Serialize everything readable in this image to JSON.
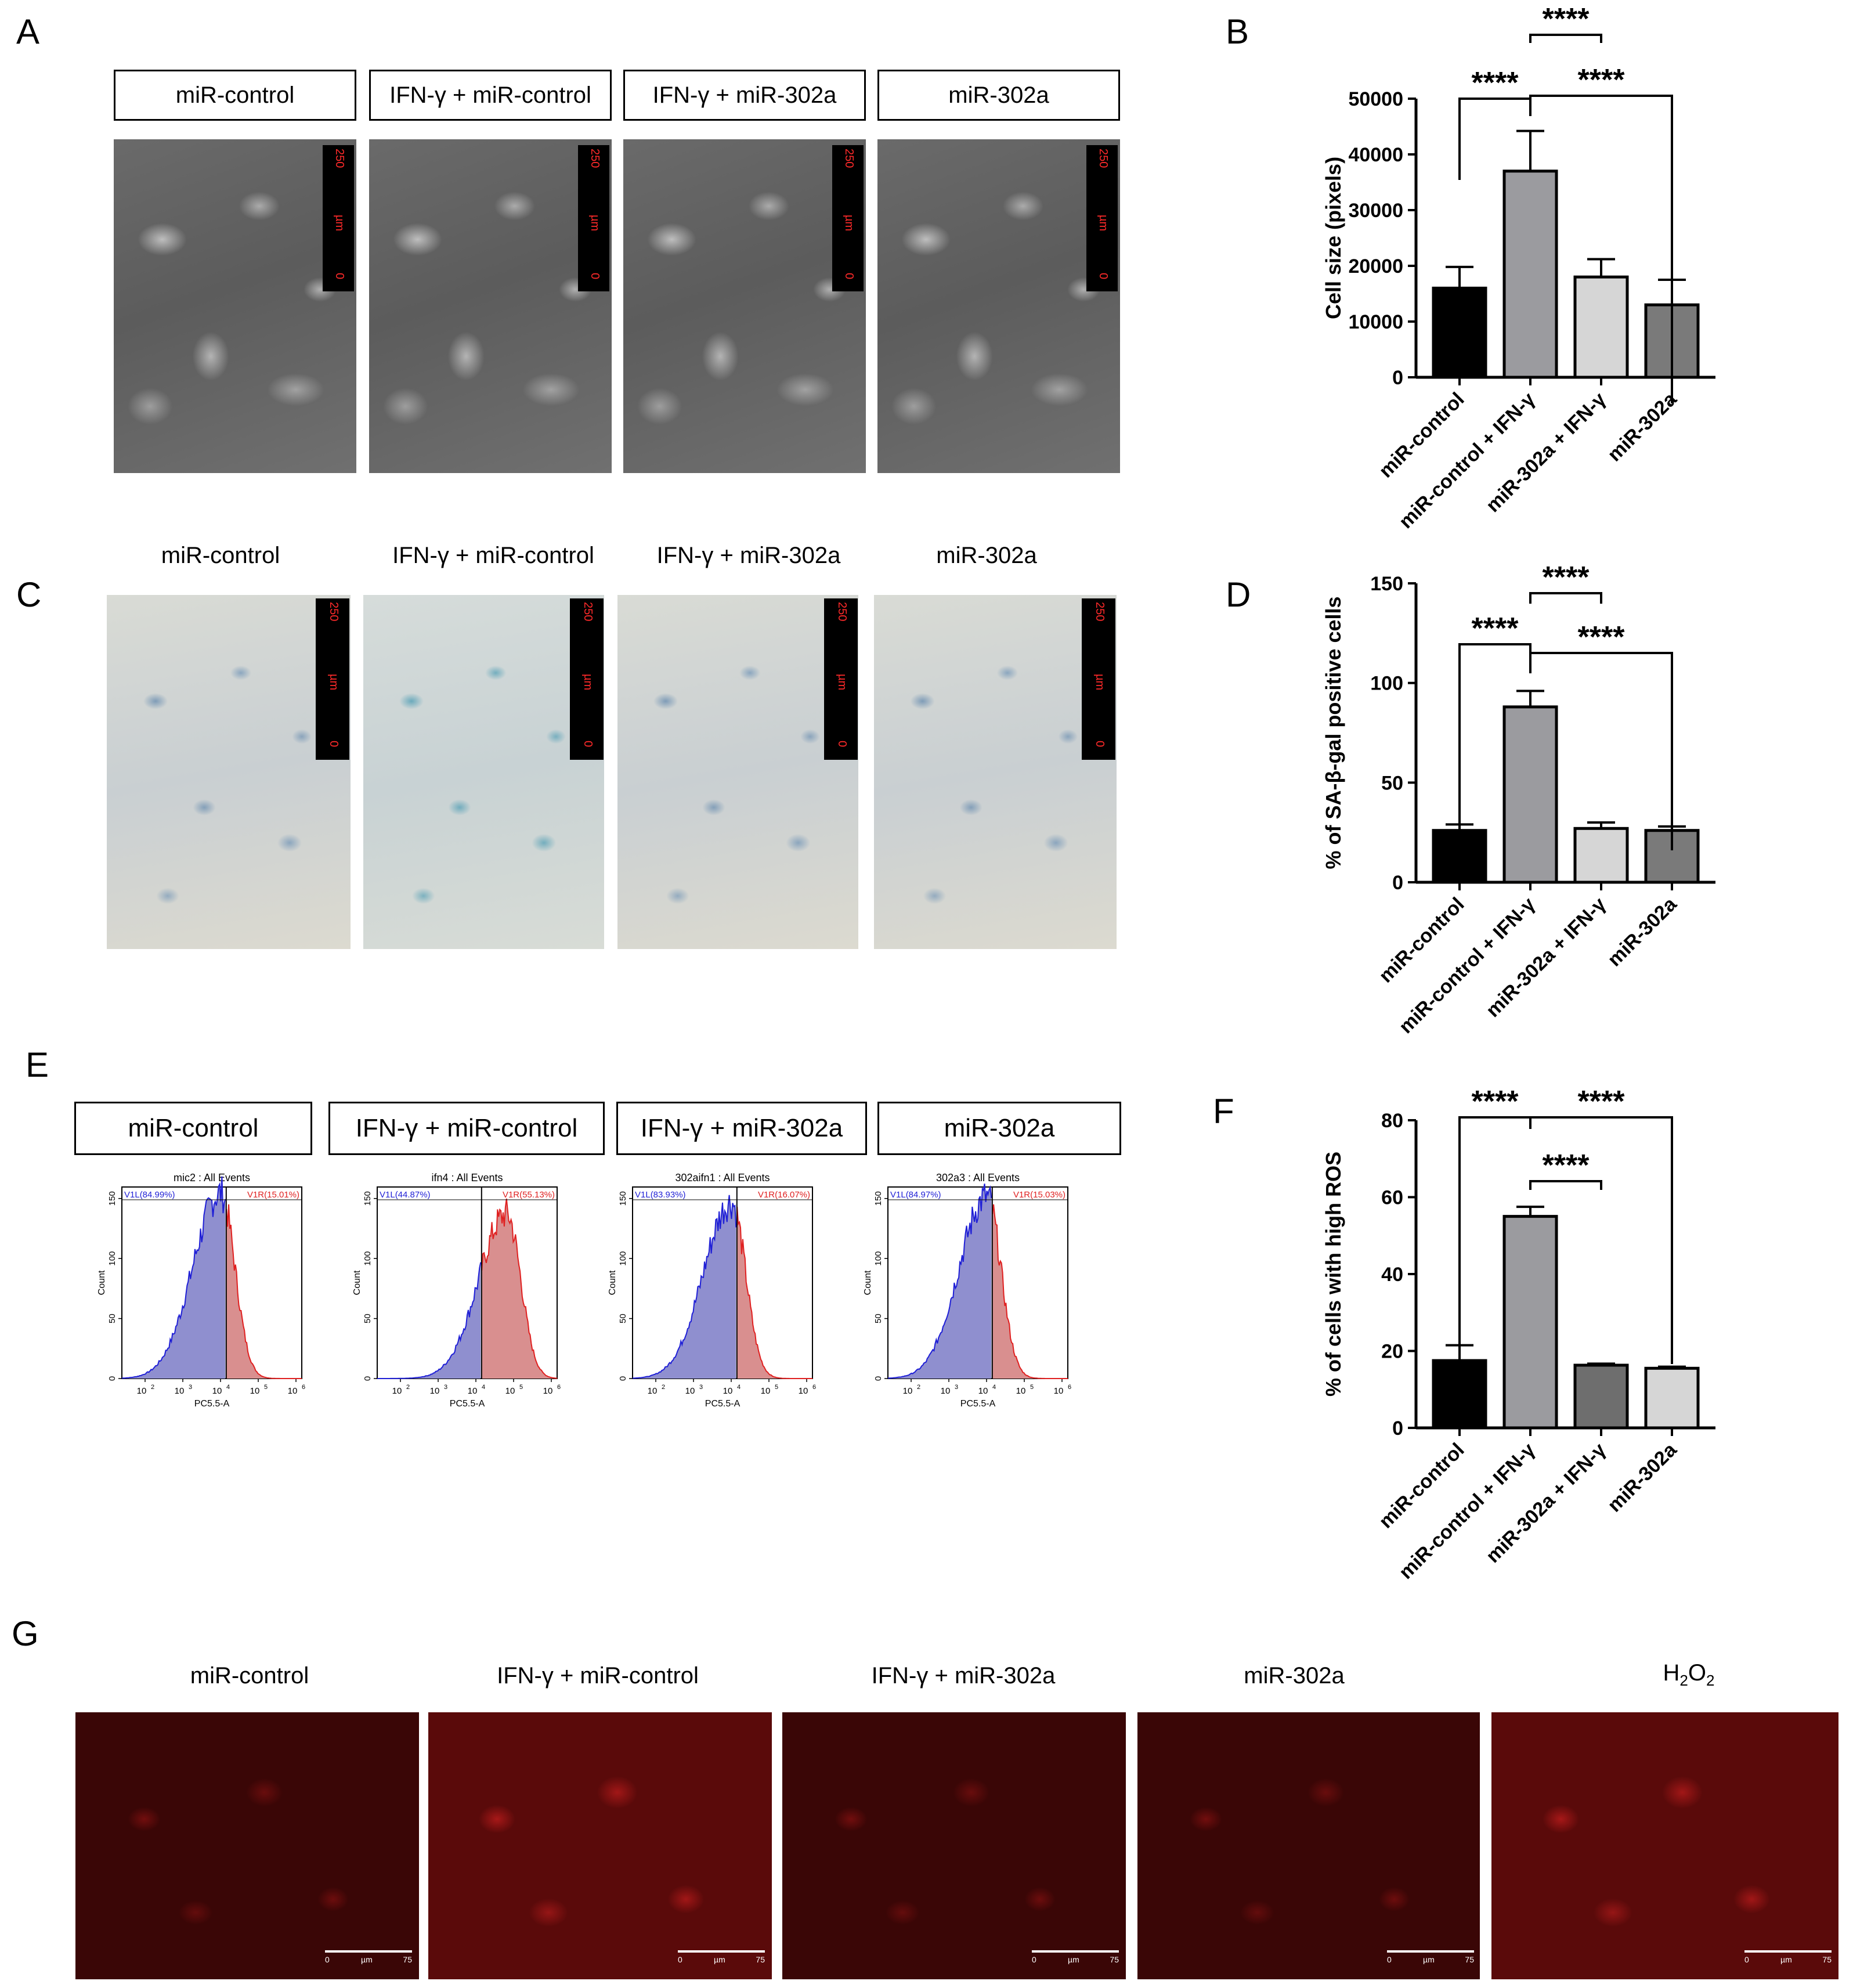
{
  "panel_letters": [
    "A",
    "B",
    "C",
    "D",
    "E",
    "F",
    "G"
  ],
  "panel_a": {
    "labels": [
      "miR-control",
      "IFN-γ + miR-control",
      "IFN-γ + miR-302a",
      "miR-302a"
    ],
    "scale_text": "250",
    "scale_unit": "µm",
    "scale_zero": "0"
  },
  "panel_c": {
    "labels": [
      "miR-control",
      "IFN-γ + miR-control",
      "IFN-γ  + miR-302a",
      "miR-302a"
    ],
    "scale_text": "250",
    "scale_unit": "µm",
    "scale_zero": "0"
  },
  "panel_e": {
    "labels": [
      "miR-control",
      "IFN-γ + miR-control",
      "IFN-γ + miR-302a",
      "miR-302a"
    ],
    "histograms": [
      {
        "title": "mic2 : All Events",
        "left_gate": "V1L(84.99%)",
        "right_gate": "V1R(15.01%)",
        "left_pct": 84.99,
        "right_pct": 15.01
      },
      {
        "title": "ifn4 : All Events",
        "left_gate": "V1L(44.87%)",
        "right_gate": "V1R(55.13%)",
        "left_pct": 44.87,
        "right_pct": 55.13
      },
      {
        "title": "302aifn1 : All Events",
        "left_gate": "V1L(83.93%)",
        "right_gate": "V1R(16.07%)",
        "left_pct": 83.93,
        "right_pct": 16.07
      },
      {
        "title": "302a3 : All Events",
        "left_gate": "V1L(84.97%)",
        "right_gate": "V1R(15.03%)",
        "left_pct": 84.97,
        "right_pct": 15.03
      }
    ],
    "ylabel": "Count",
    "xlabel": "PC5.5-A",
    "yticks": [
      "0",
      "50",
      "100",
      "150"
    ],
    "xticks": [
      {
        "base": "10",
        "exp": "2"
      },
      {
        "base": "10",
        "exp": "3"
      },
      {
        "base": "10",
        "exp": "4"
      },
      {
        "base": "10",
        "exp": "5"
      },
      {
        "base": "10",
        "exp": "6"
      }
    ],
    "colors": {
      "left": "#1f1fd6",
      "right": "#e02020",
      "left_fill": "#8f8fcf",
      "right_fill": "#d98f8f"
    }
  },
  "panel_g": {
    "labels": [
      "miR-control",
      "IFN-γ + miR-control",
      "IFN-γ + miR-302a",
      "miR-302a"
    ],
    "h2o2_base": "H",
    "h2o2_sub": "2",
    "h2o2_mid": "O",
    "h2o2_sub2": "2",
    "scale_zero": "0",
    "scale_unit": "µm",
    "scale_text": "75"
  },
  "chart_data": [
    {
      "panel": "B",
      "type": "bar",
      "categories": [
        "miR-control",
        "miR-control + IFN-γ",
        "miR-302a + IFN-γ",
        "miR-302a"
      ],
      "values": [
        16000,
        37000,
        18000,
        13000
      ],
      "errors": [
        3800,
        7200,
        3200,
        4500
      ],
      "colors": [
        "#000000",
        "#9b9b9f",
        "#d6d6d6",
        "#7a7a7a"
      ],
      "ylabel": "Cell size (pixels)",
      "ylim": [
        0,
        50000
      ],
      "yticks": [
        "0",
        "10000",
        "20000",
        "30000",
        "40000",
        "50000"
      ],
      "significance": [
        {
          "from": 0,
          "to": 1,
          "label": "****"
        },
        {
          "from": 1,
          "to": 2,
          "label": "****"
        },
        {
          "from": 1,
          "to": 3,
          "label": "****"
        }
      ]
    },
    {
      "panel": "D",
      "type": "bar",
      "categories": [
        "miR-control",
        "miR-control + IFN-γ",
        "miR-302a + IFN-γ",
        "miR-302a"
      ],
      "values": [
        26,
        88,
        27,
        26
      ],
      "errors": [
        3,
        8,
        3,
        2
      ],
      "colors": [
        "#000000",
        "#9b9b9f",
        "#d6d6d6",
        "#7a7a7a"
      ],
      "ylabel": "% of SA-β-gal positive cells",
      "ylim": [
        0,
        150
      ],
      "yticks": [
        "0",
        "50",
        "100",
        "150"
      ],
      "significance": [
        {
          "from": 0,
          "to": 1,
          "label": "****"
        },
        {
          "from": 1,
          "to": 2,
          "label": "****"
        },
        {
          "from": 1,
          "to": 3,
          "label": "****"
        }
      ]
    },
    {
      "panel": "F",
      "type": "bar",
      "categories": [
        "miR-control",
        "miR-control + IFN-γ",
        "miR-302a + IFN-γ",
        "miR-302a"
      ],
      "values": [
        17.5,
        55,
        16.3,
        15.5
      ],
      "errors": [
        4,
        2.5,
        0.4,
        0.4
      ],
      "colors": [
        "#000000",
        "#9b9b9f",
        "#6e6e6e",
        "#d6d6d6"
      ],
      "ylabel": "% of cells with high ROS",
      "ylim": [
        0,
        80
      ],
      "yticks": [
        "0",
        "20",
        "40",
        "60",
        "80"
      ],
      "significance": [
        {
          "from": 0,
          "to": 1,
          "label": "****"
        },
        {
          "from": 1,
          "to": 3,
          "label": "****"
        },
        {
          "from": 1,
          "to": 2,
          "label": "****"
        }
      ]
    }
  ]
}
